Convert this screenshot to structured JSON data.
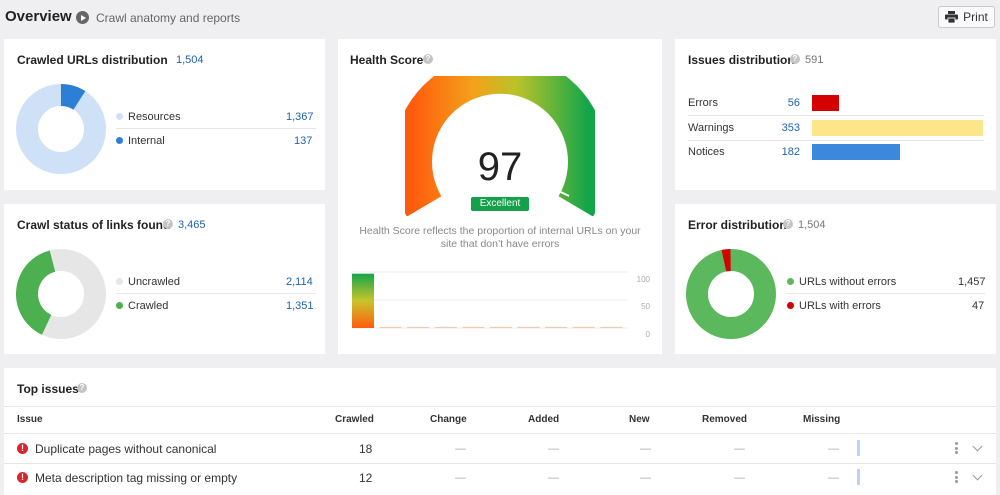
{
  "header": {
    "title": "Overview",
    "breadcrumb": "Crawl anatomy and reports",
    "print_label": "Print"
  },
  "crawled_urls": {
    "title": "Crawled URLs distribution",
    "total": "1,504",
    "items": [
      {
        "label": "Resources",
        "value": "1,367",
        "color": "#cfe1f7"
      },
      {
        "label": "Internal",
        "value": "137",
        "color": "#2b7fd6"
      }
    ]
  },
  "crawl_status": {
    "title": "Crawl status of links found",
    "total": "3,465",
    "items": [
      {
        "label": "Uncrawled",
        "value": "2,114",
        "color": "#e6e6e6"
      },
      {
        "label": "Crawled",
        "value": "1,351",
        "color": "#4caf50"
      }
    ]
  },
  "health": {
    "title": "Health Score",
    "score": "97",
    "badge": "Excellent",
    "description": "Health Score reflects the proportion of internal URLs on your site that don’t have errors",
    "axis": [
      "100",
      "50",
      "0"
    ],
    "history": [
      97,
      2,
      2,
      2,
      2,
      2,
      2,
      2,
      2,
      2
    ]
  },
  "issues_dist": {
    "title": "Issues distribution",
    "total": "591",
    "items": [
      {
        "label": "Errors",
        "value": "56",
        "num": 56,
        "color": "#d50000"
      },
      {
        "label": "Warnings",
        "value": "353",
        "num": 353,
        "color": "#fde68a"
      },
      {
        "label": "Notices",
        "value": "182",
        "num": 182,
        "color": "#3b88dc"
      }
    ]
  },
  "error_dist": {
    "title": "Error distribution",
    "total": "1,504",
    "items": [
      {
        "label": "URLs without errors",
        "value": "1,457",
        "color": "#5cb85c"
      },
      {
        "label": "URLs with errors",
        "value": "47",
        "color": "#d50000"
      }
    ]
  },
  "top_issues": {
    "title": "Top issues",
    "columns": [
      "Issue",
      "Crawled",
      "Change",
      "Added",
      "New",
      "Removed",
      "Missing"
    ],
    "rows": [
      {
        "issue": "Duplicate pages without canonical",
        "crawled": "18",
        "change": "—",
        "added": "—",
        "new": "—",
        "removed": "—",
        "missing": "—"
      },
      {
        "issue": "Meta description tag missing or empty",
        "crawled": "12",
        "change": "—",
        "added": "—",
        "new": "—",
        "removed": "—",
        "missing": "—"
      }
    ]
  }
}
